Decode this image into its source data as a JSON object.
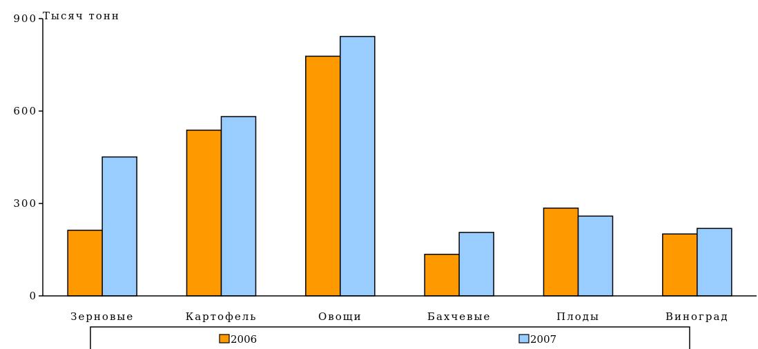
{
  "chart_data": {
    "type": "bar",
    "title": "",
    "xlabel": "",
    "ylabel": "Тысяч тонн",
    "categories": [
      "Зерновые",
      "Картофель",
      "Овощи",
      "Бахчевые",
      "Плоды",
      "Виноград"
    ],
    "series": [
      {
        "name": "2006",
        "color": "#FF9900",
        "values": [
          213,
          538,
          778,
          135,
          285,
          201
        ]
      },
      {
        "name": "2007",
        "color": "#99CCFF",
        "values": [
          451,
          582,
          842,
          206,
          259,
          219
        ]
      }
    ],
    "ylim": [
      0,
      900
    ],
    "yticks": [
      0,
      300,
      600,
      900
    ],
    "grid": false,
    "legend_position": "bottom"
  }
}
